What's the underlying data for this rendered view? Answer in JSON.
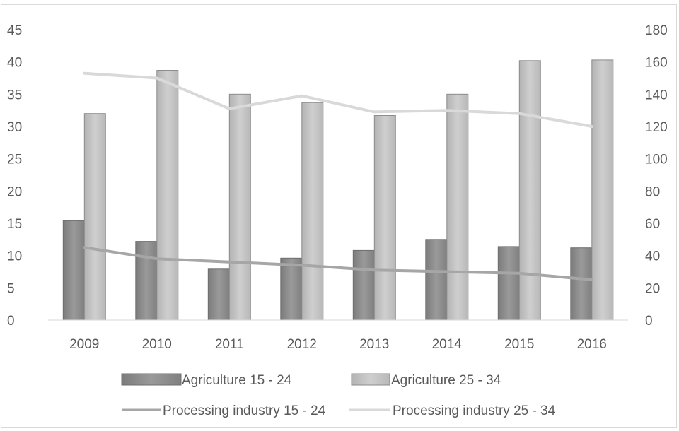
{
  "chart_data": {
    "type": "bar",
    "title": "",
    "categories": [
      "2009",
      "2010",
      "2011",
      "2012",
      "2013",
      "2014",
      "2015",
      "2016"
    ],
    "y_left": {
      "min": 0,
      "max": 45,
      "step": 5,
      "ticks": [
        "0",
        "5",
        "10",
        "15",
        "20",
        "25",
        "30",
        "35",
        "40",
        "45"
      ]
    },
    "y_right": {
      "min": 0,
      "max": 180,
      "step": 20,
      "ticks": [
        "0",
        "20",
        "40",
        "60",
        "80",
        "100",
        "120",
        "140",
        "160",
        "180"
      ]
    },
    "grid": false,
    "legend_position": "bottom",
    "series": [
      {
        "name": "Agriculture 15 - 24",
        "type": "bar",
        "axis": "left",
        "color": "#8c8c8c",
        "values": [
          15.4,
          12.2,
          7.9,
          9.6,
          10.8,
          12.5,
          11.4,
          11.2
        ]
      },
      {
        "name": "Agriculture 25 - 34",
        "type": "bar",
        "axis": "left",
        "color": "#c0c0c0",
        "values": [
          32.0,
          38.7,
          35.0,
          33.7,
          31.7,
          35.0,
          40.2,
          40.3
        ]
      },
      {
        "name": "Processing industry 15 - 24",
        "type": "line",
        "axis": "right",
        "color": "#a6a6a6",
        "values": [
          45,
          38,
          36,
          34,
          31,
          30,
          29,
          25
        ]
      },
      {
        "name": "Processing industry 25 - 34",
        "type": "line",
        "axis": "right",
        "color": "#d9d9d9",
        "values": [
          153,
          150,
          131,
          139,
          129,
          130,
          128,
          120
        ]
      }
    ]
  }
}
